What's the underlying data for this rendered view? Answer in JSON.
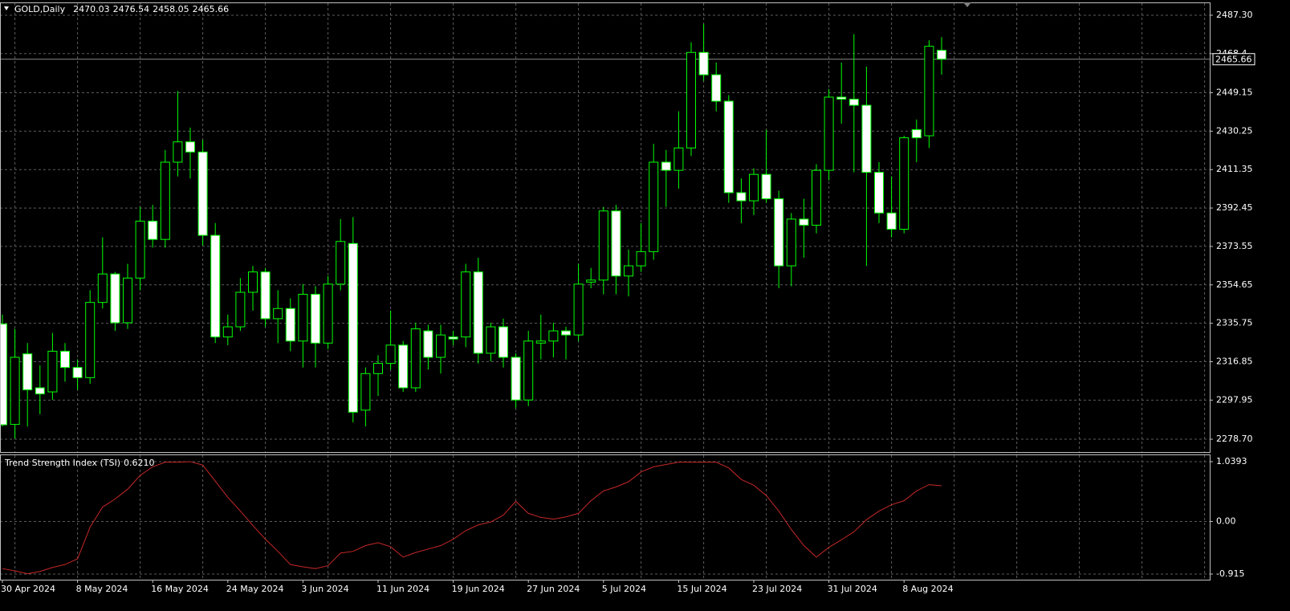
{
  "chart_data": [
    {
      "type": "candlestick",
      "title": "GOLD,Daily",
      "categories": [
        "30 Apr 2024",
        null,
        null,
        null,
        null,
        null,
        "8 May 2024",
        null,
        null,
        null,
        null,
        null,
        "16 May 2024",
        null,
        null,
        null,
        null,
        null,
        "24 May 2024",
        null,
        null,
        null,
        null,
        null,
        "3 Jun 2024",
        null,
        null,
        null,
        null,
        null,
        "11 Jun 2024",
        null,
        null,
        null,
        null,
        null,
        "19 Jun 2024",
        null,
        null,
        null,
        null,
        null,
        "27 Jun 2024",
        null,
        null,
        null,
        null,
        null,
        "5 Jul 2024",
        null,
        null,
        null,
        null,
        null,
        "15 Jul 2024",
        null,
        null,
        null,
        null,
        null,
        "23 Jul 2024",
        null,
        null,
        null,
        null,
        null,
        "31 Jul 2024",
        null,
        null,
        null,
        null,
        null,
        "8 Aug 2024",
        null,
        null,
        null
      ],
      "open": [
        2335.4,
        2286,
        2320.7,
        2304,
        2302,
        2322,
        2314,
        2309,
        2346,
        2360,
        2336,
        2358,
        2386,
        2377,
        2415,
        2425,
        2420,
        2379,
        2329,
        2334,
        2351,
        2361,
        2338,
        2343,
        2327,
        2350,
        2326,
        2355,
        2375,
        2293,
        2311,
        2316,
        2325,
        2304,
        2332,
        2319,
        2329,
        2329,
        2361,
        2321,
        2334,
        2319,
        2298,
        2326,
        2327,
        2332,
        2330,
        2356,
        2357,
        2391,
        2359,
        2364,
        2371,
        2415,
        2411,
        2422,
        2469,
        2458,
        2445,
        2400,
        2396,
        2409,
        2397,
        2364,
        2387,
        2384,
        2411,
        2447,
        2446,
        2443,
        2410,
        2390,
        2382,
        2431,
        2428,
        2470.03
      ],
      "high": [
        2340,
        2333,
        2326,
        2315,
        2331,
        2326,
        2318,
        2352,
        2378,
        2361,
        2365,
        2393,
        2394,
        2421,
        2450,
        2432,
        2426,
        2385,
        2340,
        2358,
        2364,
        2363,
        2352,
        2348,
        2355,
        2354,
        2359,
        2387,
        2388,
        2314,
        2320,
        2342,
        2327,
        2336,
        2335,
        2335,
        2332,
        2365,
        2368,
        2336,
        2338,
        2321,
        2332,
        2340,
        2336,
        2334,
        2365,
        2363,
        2393,
        2394,
        2372,
        2385,
        2424,
        2421,
        2440,
        2474,
        2483,
        2464,
        2448,
        2407,
        2412,
        2431,
        2401,
        2390,
        2397,
        2414,
        2451,
        2464,
        2478,
        2462,
        2415,
        2408,
        2428,
        2436,
        2475,
        2476.54
      ],
      "low": [
        2285,
        2279,
        2285,
        2291,
        2298,
        2307,
        2303,
        2306,
        2343,
        2332,
        2333,
        2352,
        2373,
        2373,
        2408,
        2407,
        2374,
        2326,
        2325,
        2332,
        2342,
        2334,
        2326,
        2322,
        2314,
        2314,
        2323,
        2352,
        2287,
        2285,
        2300,
        2313,
        2302,
        2302,
        2313,
        2311,
        2325,
        2324,
        2316,
        2317,
        2314,
        2294,
        2295,
        2318,
        2319,
        2318,
        2327,
        2353,
        2350,
        2350,
        2349,
        2361,
        2367,
        2393,
        2402,
        2418,
        2455,
        2440,
        2395,
        2385,
        2389,
        2395,
        2353,
        2354,
        2368,
        2380,
        2406,
        2434,
        2410,
        2364,
        2385,
        2378,
        2380,
        2415,
        2422,
        2458.05
      ],
      "close": [
        2285.8,
        2319,
        2303,
        2301,
        2322,
        2314,
        2309,
        2346,
        2360,
        2336,
        2358,
        2386,
        2377,
        2415,
        2425,
        2420,
        2379,
        2329,
        2334,
        2351,
        2361,
        2338,
        2343,
        2327,
        2350,
        2326,
        2355,
        2376,
        2292,
        2311,
        2316,
        2325,
        2304,
        2333,
        2319,
        2330,
        2328,
        2361,
        2321,
        2334,
        2319,
        2298,
        2327,
        2327,
        2332,
        2330,
        2355,
        2357,
        2391,
        2359,
        2364,
        2371,
        2415,
        2411,
        2422,
        2469,
        2458,
        2445,
        2400,
        2396,
        2409,
        2397,
        2364,
        2387,
        2384,
        2411,
        2447,
        2446,
        2443,
        2410,
        2390,
        2382,
        2427,
        2427,
        2472,
        2465.66
      ],
      "ylim": [
        2272.4,
        2493.6
      ],
      "yticks": [
        {
          "value": 2487.3,
          "label": "2487.30"
        },
        2468.4,
        {
          "value": 2449.15,
          "label": "2449.15"
        },
        2430.25,
        2411.35,
        2392.45,
        2373.55,
        2354.65,
        2335.75,
        2316.85,
        2297.95,
        {
          "value": 2278.7,
          "label": "2278.70"
        }
      ],
      "up_color": "#000000",
      "down_color": "#ffffff",
      "wick_color": "#00ff00",
      "grid": true,
      "grid_color": "#5c5c5c"
    },
    {
      "type": "line",
      "title": "Trend Strength Index (TSI)",
      "current": {
        "value": 0.621,
        "label": "0.6210"
      },
      "values": [
        -0.82,
        -0.86,
        -0.91,
        -0.87,
        -0.8,
        -0.75,
        -0.65,
        -0.1,
        0.25,
        0.39,
        0.56,
        0.8,
        0.95,
        1.03,
        1.03,
        1.04,
        0.98,
        0.7,
        0.42,
        0.18,
        -0.07,
        -0.31,
        -0.52,
        -0.75,
        -0.79,
        -0.82,
        -0.77,
        -0.55,
        -0.52,
        -0.42,
        -0.37,
        -0.44,
        -0.62,
        -0.54,
        -0.48,
        -0.42,
        -0.31,
        -0.16,
        -0.06,
        -0.01,
        0.11,
        0.35,
        0.14,
        0.07,
        0.04,
        0.08,
        0.14,
        0.36,
        0.53,
        0.6,
        0.69,
        0.86,
        0.95,
        0.99,
        1.03,
        1.03,
        1.03,
        1.03,
        0.93,
        0.73,
        0.63,
        0.45,
        0.18,
        -0.14,
        -0.42,
        -0.62,
        -0.45,
        -0.32,
        -0.18,
        0.03,
        0.18,
        0.29,
        0.36,
        0.53,
        0.64,
        0.621
      ],
      "color": "#c62828",
      "ylim": [
        -1.013,
        1.151
      ],
      "yticks": [
        1.0393,
        {
          "value": 0,
          "label": "0.00"
        },
        -0.915
      ],
      "grid": true,
      "grid_color": "#5c5c5c"
    }
  ]
}
